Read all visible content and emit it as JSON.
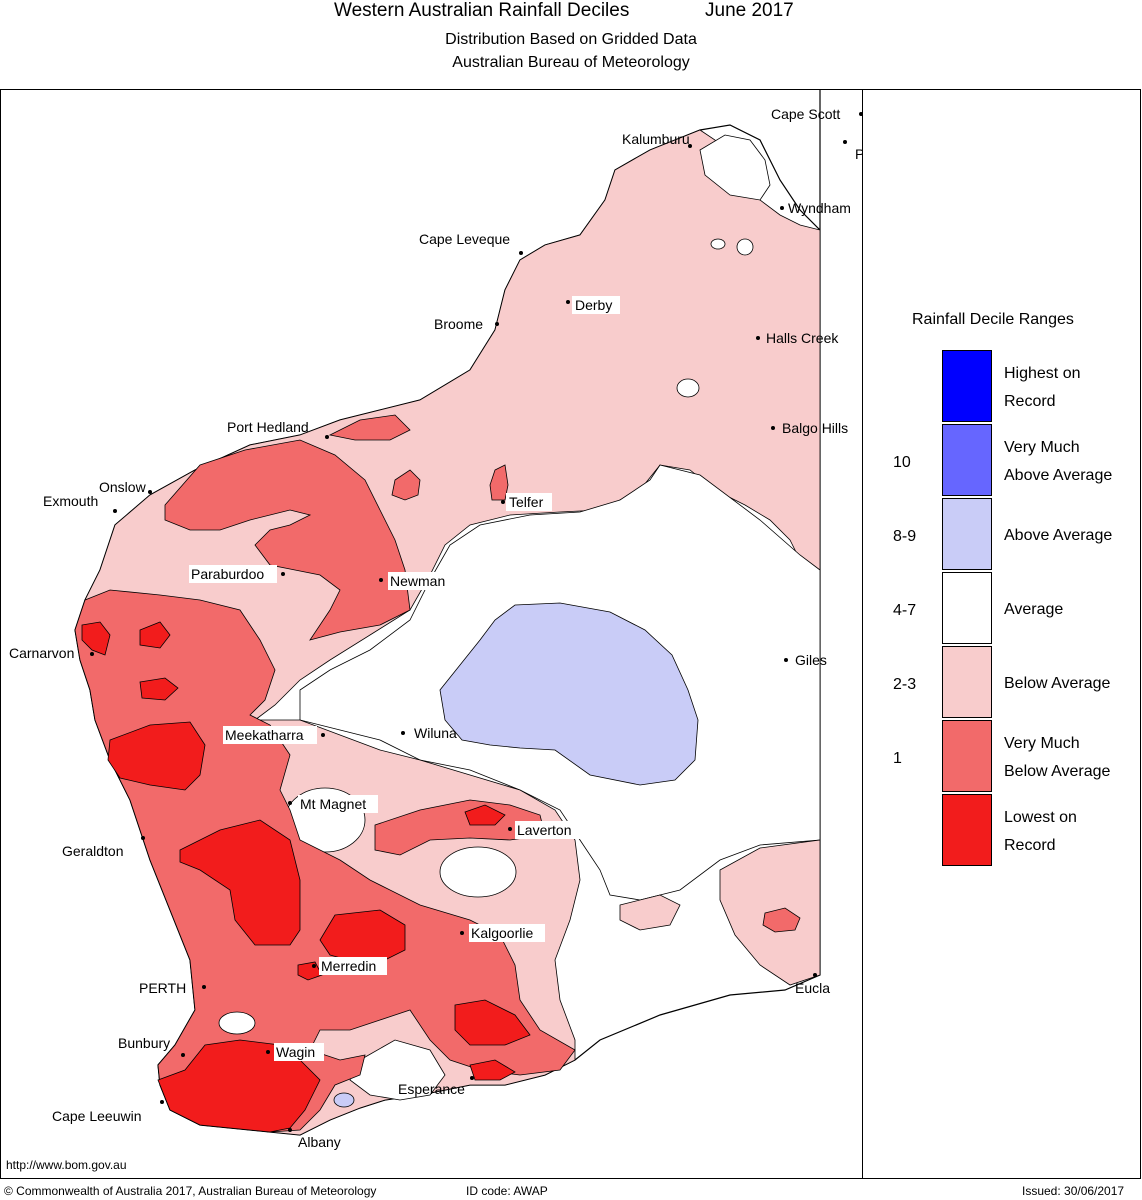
{
  "header": {
    "title": "Western Australian Rainfall Deciles",
    "month": "June 2017",
    "subtitle1": "Distribution Based on Gridded Data",
    "subtitle2": "Australian Bureau of Meteorology"
  },
  "colors": {
    "highest": "#0000ff",
    "very_much_above": "#6666ff",
    "above": "#c9ccf7",
    "average": "#ffffff",
    "below": "#f8cccc",
    "very_much_below": "#f26a6a",
    "lowest": "#f21c1c"
  },
  "legend": {
    "title": "Rainfall Decile Ranges",
    "items": [
      {
        "line1": "Highest on",
        "line2": "Record",
        "color": "#0000ff"
      },
      {
        "line1": "Very Much",
        "line2": "Above Average",
        "color": "#6666ff"
      },
      {
        "line1": "Above Average",
        "line2": "",
        "color": "#c9ccf7"
      },
      {
        "line1": "Average",
        "line2": "",
        "color": "#ffffff"
      },
      {
        "line1": "Below Average",
        "line2": "",
        "color": "#f8cccc"
      },
      {
        "line1": "Very Much",
        "line2": "Below Average",
        "color": "#f26a6a"
      },
      {
        "line1": "Lowest on",
        "line2": "Record",
        "color": "#f21c1c"
      }
    ],
    "ranges": [
      "10",
      "8-9",
      "4-7",
      "2-3",
      "1"
    ]
  },
  "places": {
    "cape_scott": "Cape Scott",
    "kalumburu": "Kalumburu",
    "wyndham": "Wyndham",
    "cape_leveque": "Cape Leveque",
    "derby": "Derby",
    "broome": "Broome",
    "halls_creek": "Halls Creek",
    "balgo_hills": "Balgo Hills",
    "port_hedland": "Port Hedland",
    "onslow": "Onslow",
    "exmouth": "Exmouth",
    "telfer": "Telfer",
    "paraburdoo": "Paraburdoo",
    "newman": "Newman",
    "carnarvon": "Carnarvon",
    "giles": "Giles",
    "meekatharra": "Meekatharra",
    "wiluna": "Wiluna",
    "mt_magnet": "Mt Magnet",
    "laverton": "Laverton",
    "geraldton": "Geraldton",
    "kalgoorlie": "Kalgoorlie",
    "merredin": "Merredin",
    "perth": "PERTH",
    "eucla": "Eucla",
    "bunbury": "Bunbury",
    "wagin": "Wagin",
    "esperance": "Esperance",
    "cape_leeuwin": "Cape Leeuwin",
    "albany": "Albany",
    "edge_letter": "P"
  },
  "footer": {
    "url": "http://www.bom.gov.au",
    "copyright": "© Commonwealth of Australia 2017, Australian Bureau of Meteorology",
    "id_code": "ID code: AWAP",
    "issued": "Issued: 30/06/2017"
  }
}
